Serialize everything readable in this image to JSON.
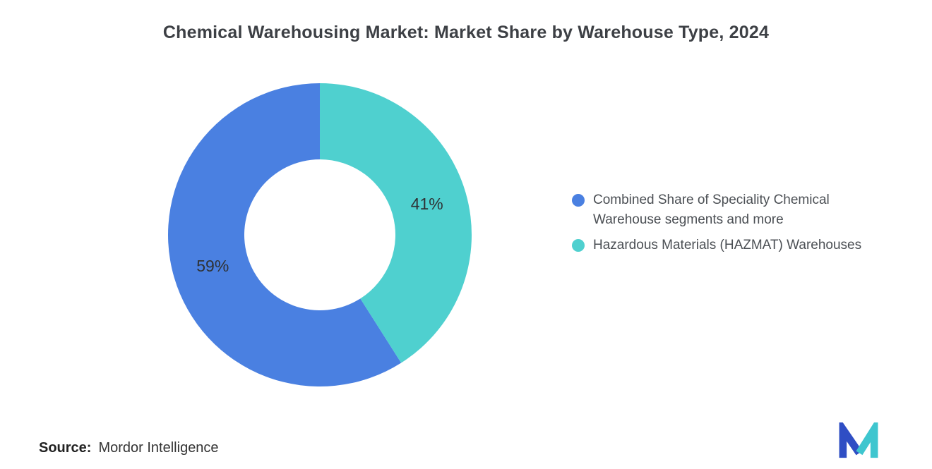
{
  "title": "Chemical Warehousing Market: Market Share by Warehouse Type, 2024",
  "source": {
    "label": "Source:",
    "value": "Mordor Intelligence"
  },
  "legend": [
    {
      "label": "Combined Share of Speciality Chemical Warehouse segments and more"
    },
    {
      "label": "Hazardous Materials (HAZMAT) Warehouses"
    }
  ],
  "chart_data": {
    "type": "pie",
    "subtype": "donut",
    "title": "Chemical Warehousing Market: Market Share by Warehouse Type, 2024",
    "categories": [
      "Combined Share of Speciality Chemical Warehouse segments and more",
      "Hazardous Materials (HAZMAT) Warehouses"
    ],
    "values": [
      59,
      41
    ],
    "labels": [
      "59%",
      "41%"
    ],
    "colors": [
      "#4a80e1",
      "#4fd0cf"
    ],
    "legend_position": "right",
    "start_angle_deg": 0,
    "direction": "counterclockwise",
    "inner_radius_ratio": 0.5
  },
  "logo": {
    "name": "Mordor Intelligence logo",
    "blue": "#2f4ec4",
    "teal": "#3ec6cf"
  }
}
